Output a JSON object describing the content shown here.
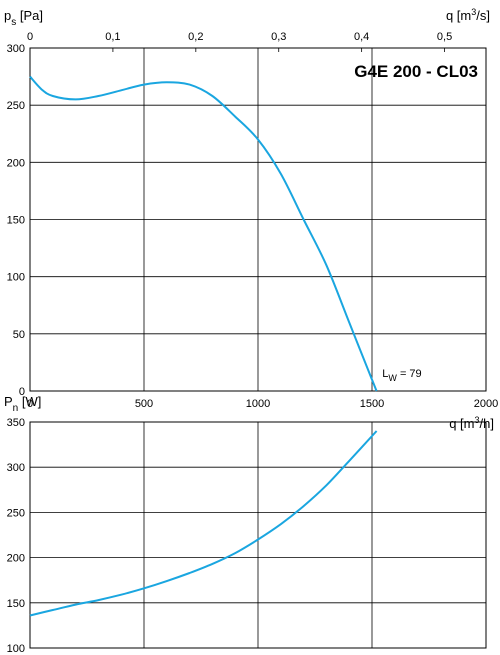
{
  "chart_data": [
    {
      "type": "line",
      "title": "G4E 200 - CL03",
      "ylabel": "p s [Pa]",
      "ylabel_main": "p",
      "ylabel_sub": "s",
      "ylabel_unit": "[Pa]",
      "xlabel_top": "q [m3/s]",
      "xlabel_top_main": "q [m",
      "xlabel_top_sup": "3",
      "xlabel_top_tail": "/s]",
      "x_top_ticks": [
        "0",
        "0,1",
        "0,2",
        "0,3",
        "0,4",
        "0,5"
      ],
      "x_top_lim": [
        0,
        0.55
      ],
      "x_ticks": [
        "0",
        "500",
        "1000",
        "1500",
        "2000"
      ],
      "xlim": [
        0,
        2000
      ],
      "y_ticks": [
        "0",
        "50",
        "100",
        "150",
        "200",
        "250",
        "300"
      ],
      "ylim": [
        0,
        300
      ],
      "annotation_main": "L",
      "annotation_sub": "W",
      "annotation_tail": " = 79",
      "annotation_x": 1510,
      "annotation_y": 0,
      "series": [
        {
          "x": [
            0,
            50,
            100,
            200,
            300,
            400,
            500,
            600,
            700,
            800,
            900,
            1000,
            1100,
            1200,
            1300,
            1400,
            1500,
            1520
          ],
          "y": [
            275,
            264,
            258,
            255,
            258,
            263,
            268,
            270,
            268,
            258,
            240,
            220,
            190,
            150,
            110,
            60,
            10,
            0
          ]
        }
      ]
    },
    {
      "type": "line",
      "ylabel": "P n [W]",
      "ylabel_main": "P",
      "ylabel_sub": "n",
      "ylabel_unit": "[W]",
      "xlabel": "q [m3/h]",
      "xlabel_main": "q [m",
      "xlabel_sup": "3",
      "xlabel_tail": "/h]",
      "xlim": [
        0,
        2000
      ],
      "y_ticks": [
        "100",
        "150",
        "200",
        "250",
        "300",
        "350"
      ],
      "ylim": [
        100,
        350
      ],
      "series": [
        {
          "x": [
            0,
            100,
            200,
            300,
            400,
            500,
            600,
            700,
            800,
            900,
            1000,
            1100,
            1200,
            1300,
            1400,
            1520
          ],
          "y": [
            136,
            142,
            148,
            153,
            159,
            166,
            174,
            183,
            193,
            205,
            220,
            237,
            257,
            280,
            307,
            340
          ]
        }
      ]
    }
  ],
  "colors": {
    "curve": "#1aa6e0",
    "grid": "#000000",
    "background": "#ffffff"
  }
}
